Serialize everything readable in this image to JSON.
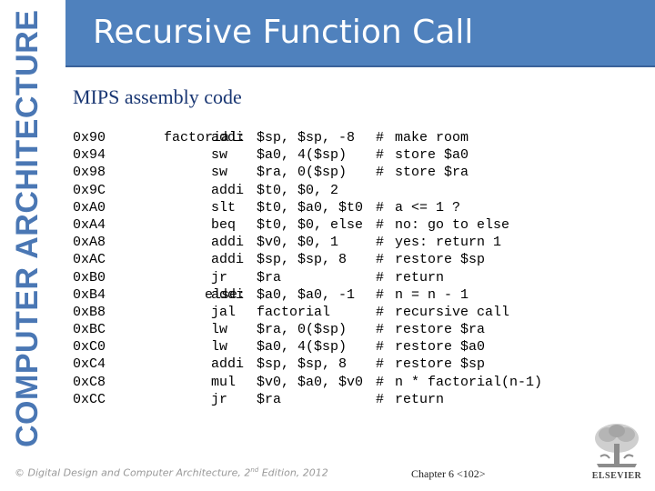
{
  "sidebar": {
    "book_title": "COMPUTER ARCHITECTURE"
  },
  "header": {
    "title": "Recursive Function Call"
  },
  "subtitle": "MIPS assembly code",
  "code": [
    {
      "addr": "0x90",
      "label": "factorial:",
      "op": "addi",
      "args": "$sp, $sp, -8",
      "hash": "#",
      "comment": "make room"
    },
    {
      "addr": "0x94",
      "label": "",
      "op": "sw",
      "args": "$a0, 4($sp)",
      "hash": "#",
      "comment": "store $a0"
    },
    {
      "addr": "0x98",
      "label": "",
      "op": "sw",
      "args": "$ra, 0($sp)",
      "hash": "#",
      "comment": "store $ra"
    },
    {
      "addr": "0x9C",
      "label": "",
      "op": "addi",
      "args": "$t0, $0, 2",
      "hash": "",
      "comment": ""
    },
    {
      "addr": "0xA0",
      "label": "",
      "op": "slt",
      "args": "$t0, $a0, $t0",
      "hash": "#",
      "comment": "a <= 1 ?"
    },
    {
      "addr": "0xA4",
      "label": "",
      "op": "beq",
      "args": "$t0, $0, else",
      "hash": "#",
      "comment": "no: go to else"
    },
    {
      "addr": "0xA8",
      "label": "",
      "op": "addi",
      "args": "$v0, $0, 1",
      "hash": "#",
      "comment": "yes: return 1"
    },
    {
      "addr": "0xAC",
      "label": "",
      "op": "addi",
      "args": "$sp, $sp, 8",
      "hash": "#",
      "comment": "restore $sp"
    },
    {
      "addr": "0xB0",
      "label": "",
      "op": "jr",
      "args": "$ra",
      "hash": "#",
      "comment": "return"
    },
    {
      "addr": "0xB4",
      "label": "else:",
      "op": "addi",
      "args": "$a0, $a0, -1",
      "hash": "#",
      "comment": "n = n - 1"
    },
    {
      "addr": "0xB8",
      "label": "",
      "op": "jal",
      "args": "factorial",
      "hash": "#",
      "comment": "recursive call"
    },
    {
      "addr": "0xBC",
      "label": "",
      "op": "lw",
      "args": "$ra, 0($sp)",
      "hash": "#",
      "comment": "restore $ra"
    },
    {
      "addr": "0xC0",
      "label": "",
      "op": "lw",
      "args": "$a0, 4($sp)",
      "hash": "#",
      "comment": "restore $a0"
    },
    {
      "addr": "0xC4",
      "label": "",
      "op": "addi",
      "args": "$sp, $sp, 8",
      "hash": "#",
      "comment": "restore $sp"
    },
    {
      "addr": "0xC8",
      "label": "",
      "op": "mul",
      "args": "$v0, $a0, $v0",
      "hash": "#",
      "comment": "n * factorial(n-1)"
    },
    {
      "addr": "0xCC",
      "label": "",
      "op": "jr",
      "args": "$ra",
      "hash": "#",
      "comment": "return"
    }
  ],
  "footer": {
    "copyright_prefix": "© Digital Design and Computer Architecture, 2",
    "edition_sup": "nd",
    "copyright_suffix": " Edition, 2012",
    "chapter": "Chapter 6 <102>",
    "publisher_logo": "ELSEVIER"
  },
  "colors": {
    "title_bar": "#4f81bd",
    "side_title": "#4a77b4",
    "subtitle": "#1a3773"
  }
}
